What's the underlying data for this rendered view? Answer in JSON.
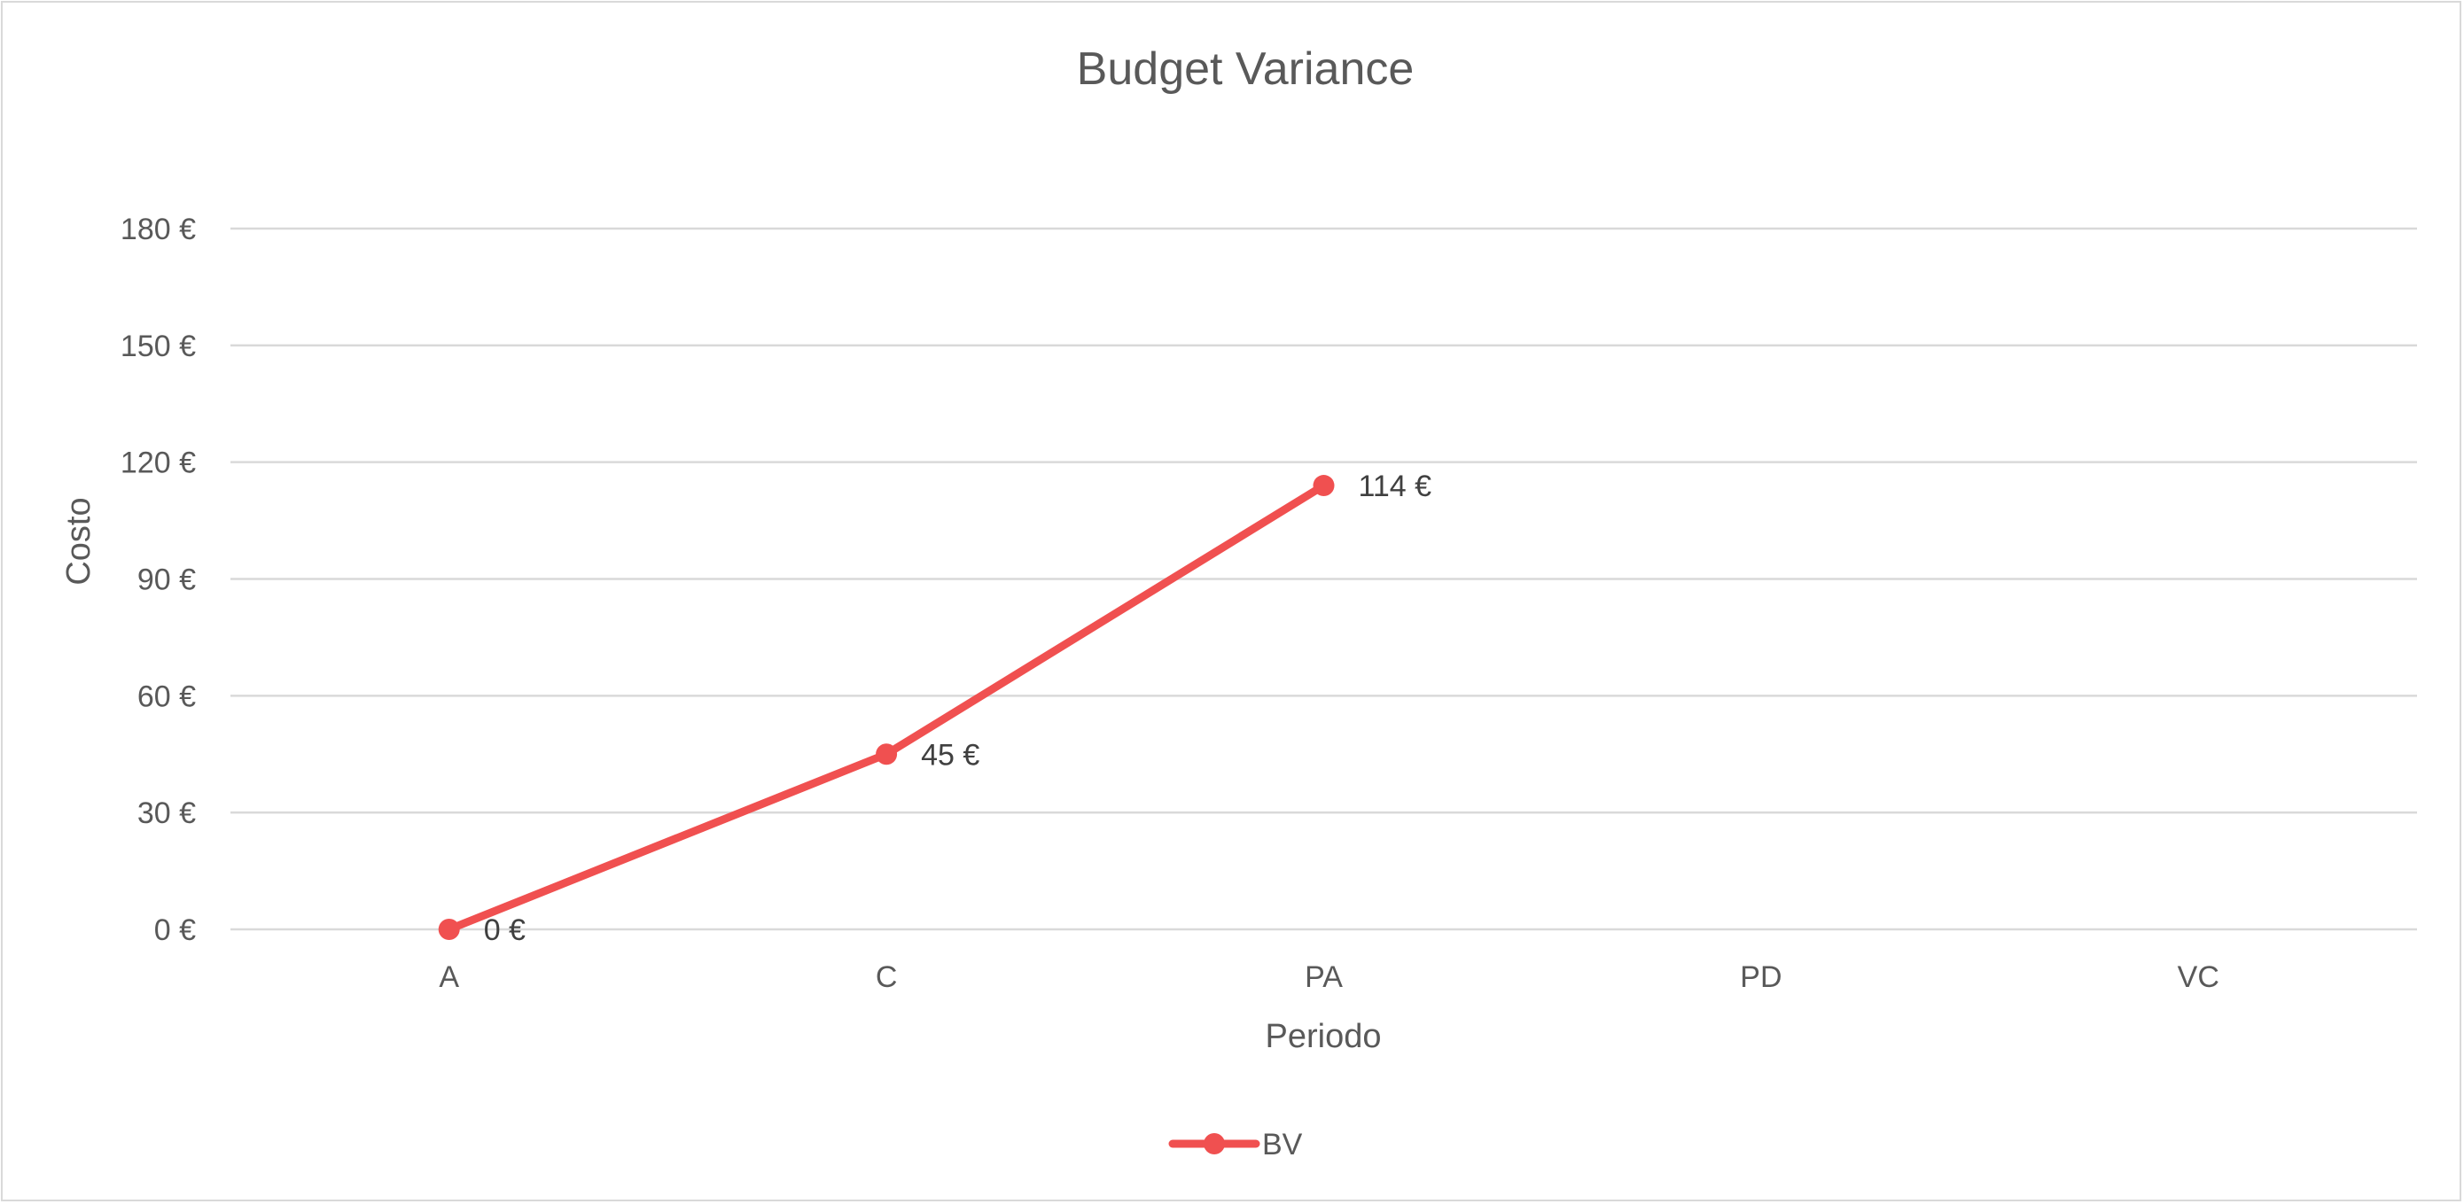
{
  "chart_data": {
    "type": "line",
    "title": "Budget Variance",
    "xlabel": "Periodo",
    "ylabel": "Costo",
    "categories": [
      "A",
      "C",
      "PA",
      "PD",
      "VC"
    ],
    "series": [
      {
        "name": "BV",
        "color": "#f05050",
        "values": [
          0,
          45,
          114,
          null,
          null
        ],
        "labels": [
          "0 €",
          "45 €",
          "114 €",
          null,
          null
        ]
      }
    ],
    "ylim": [
      0,
      180
    ],
    "yticks": [
      0,
      30,
      60,
      90,
      120,
      150,
      180
    ],
    "ytick_labels": [
      "0 €",
      "30 €",
      "60 €",
      "90 €",
      "120 €",
      "150 €",
      "180 €"
    ],
    "grid": true,
    "legend_position": "bottom"
  }
}
